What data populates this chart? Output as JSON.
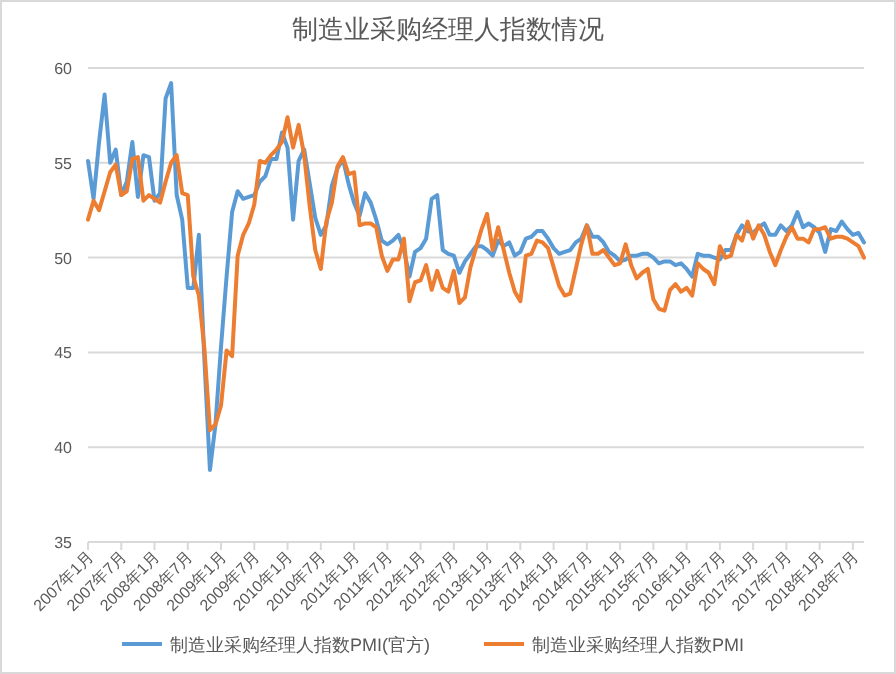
{
  "chart_data": {
    "type": "line",
    "title": "制造业采购经理人指数情况",
    "categories": [
      "2007年1月",
      null,
      null,
      null,
      null,
      null,
      "2007年7月",
      null,
      null,
      null,
      null,
      null,
      "2008年1月",
      null,
      null,
      null,
      null,
      null,
      "2008年7月",
      null,
      null,
      null,
      null,
      null,
      "2009年1月",
      null,
      null,
      null,
      null,
      null,
      "2009年7月",
      null,
      null,
      null,
      null,
      null,
      "2010年1月",
      null,
      null,
      null,
      null,
      null,
      "2010年7月",
      null,
      null,
      null,
      null,
      null,
      "2011年1月",
      null,
      null,
      null,
      null,
      null,
      "2011年7月",
      null,
      null,
      null,
      null,
      null,
      "2012年1月",
      null,
      null,
      null,
      null,
      null,
      "2012年7月",
      null,
      null,
      null,
      null,
      null,
      "2013年1月",
      null,
      null,
      null,
      null,
      null,
      "2013年7月",
      null,
      null,
      null,
      null,
      null,
      "2014年1月",
      null,
      null,
      null,
      null,
      null,
      "2014年7月",
      null,
      null,
      null,
      null,
      null,
      "2015年1月",
      null,
      null,
      null,
      null,
      null,
      "2015年7月",
      null,
      null,
      null,
      null,
      null,
      "2016年1月",
      null,
      null,
      null,
      null,
      null,
      "2016年7月",
      null,
      null,
      null,
      null,
      null,
      "2017年1月",
      null,
      null,
      null,
      null,
      null,
      "2017年7月",
      null,
      null,
      null,
      null,
      null,
      "2018年1月",
      null,
      null,
      null,
      null,
      null,
      "2018年7月",
      null,
      null
    ],
    "series": [
      {
        "name": "制造业采购经理人指数PMI(官方)",
        "color": "#5b9bd5",
        "values": [
          55.1,
          53.1,
          56.1,
          58.6,
          55.0,
          55.7,
          53.3,
          54.0,
          56.1,
          53.2,
          55.4,
          55.3,
          53.0,
          53.4,
          58.4,
          59.2,
          53.3,
          52.0,
          48.4,
          48.4,
          51.2,
          44.6,
          38.8,
          41.2,
          45.3,
          49.0,
          52.4,
          53.5,
          53.1,
          53.2,
          53.3,
          54.0,
          54.3,
          55.2,
          55.2,
          56.6,
          55.8,
          52.0,
          55.1,
          55.7,
          53.9,
          52.1,
          51.2,
          51.7,
          53.8,
          54.7,
          55.2,
          53.9,
          52.9,
          52.2,
          53.4,
          52.9,
          52.0,
          50.9,
          50.7,
          50.9,
          51.2,
          50.4,
          49.0,
          50.3,
          50.5,
          51.0,
          53.1,
          53.3,
          50.4,
          50.2,
          50.1,
          49.2,
          49.8,
          50.2,
          50.6,
          50.6,
          50.4,
          50.1,
          50.9,
          50.6,
          50.8,
          50.1,
          50.3,
          51.0,
          51.1,
          51.4,
          51.4,
          51.0,
          50.5,
          50.2,
          50.3,
          50.4,
          50.8,
          51.0,
          51.7,
          51.1,
          51.1,
          50.8,
          50.3,
          50.1,
          49.8,
          49.9,
          50.1,
          50.1,
          50.2,
          50.2,
          50.0,
          49.7,
          49.8,
          49.8,
          49.6,
          49.7,
          49.4,
          49.0,
          50.2,
          50.1,
          50.1,
          50.0,
          49.9,
          50.4,
          50.4,
          51.2,
          51.7,
          51.4,
          51.3,
          51.6,
          51.8,
          51.2,
          51.2,
          51.7,
          51.4,
          51.7,
          52.4,
          51.6,
          51.8,
          51.6,
          51.3,
          50.3,
          51.5,
          51.4,
          51.9,
          51.5,
          51.2,
          51.3,
          50.8
        ]
      },
      {
        "name": "制造业采购经理人指数PMI",
        "color": "#ed7d31",
        "values": [
          52.0,
          53.0,
          52.5,
          53.5,
          54.5,
          54.9,
          53.3,
          53.5,
          55.2,
          55.3,
          53.0,
          53.3,
          53.1,
          52.9,
          54.0,
          55.0,
          55.4,
          53.4,
          53.3,
          49.0,
          48.0,
          45.2,
          40.9,
          41.2,
          42.2,
          45.1,
          44.8,
          50.1,
          51.2,
          51.8,
          52.8,
          55.1,
          55.0,
          55.4,
          55.7,
          56.1,
          57.4,
          55.8,
          57.0,
          55.4,
          52.7,
          50.4,
          49.4,
          51.9,
          52.9,
          54.8,
          55.3,
          54.4,
          54.5,
          51.7,
          51.8,
          51.8,
          51.6,
          50.1,
          49.3,
          49.9,
          49.9,
          51.0,
          47.7,
          48.7,
          48.8,
          49.6,
          48.3,
          49.3,
          48.4,
          48.2,
          49.3,
          47.6,
          47.9,
          49.5,
          50.5,
          51.5,
          52.3,
          50.4,
          51.6,
          50.4,
          49.2,
          48.2,
          47.7,
          50.1,
          50.2,
          50.9,
          50.8,
          50.5,
          49.5,
          48.5,
          48.0,
          48.1,
          49.4,
          50.7,
          51.7,
          50.2,
          50.2,
          50.4,
          50.0,
          49.6,
          49.7,
          50.7,
          49.6,
          48.9,
          49.2,
          49.4,
          47.8,
          47.3,
          47.2,
          48.3,
          48.6,
          48.2,
          48.4,
          48.0,
          49.7,
          49.4,
          49.2,
          48.6,
          50.6,
          50.0,
          50.1,
          51.2,
          50.9,
          51.9,
          51.0,
          51.7,
          51.2,
          50.3,
          49.6,
          50.4,
          51.1,
          51.6,
          51.0,
          51.0,
          50.8,
          51.5,
          51.5,
          51.6,
          51.0,
          51.1,
          51.1,
          51.0,
          50.8,
          50.6,
          50.0
        ]
      }
    ],
    "ylim": [
      35,
      60
    ],
    "yticks": [
      35,
      40,
      45,
      50,
      55,
      60
    ],
    "grid": "y",
    "legend": "bottom",
    "marker": "none",
    "line_style": "solid"
  }
}
